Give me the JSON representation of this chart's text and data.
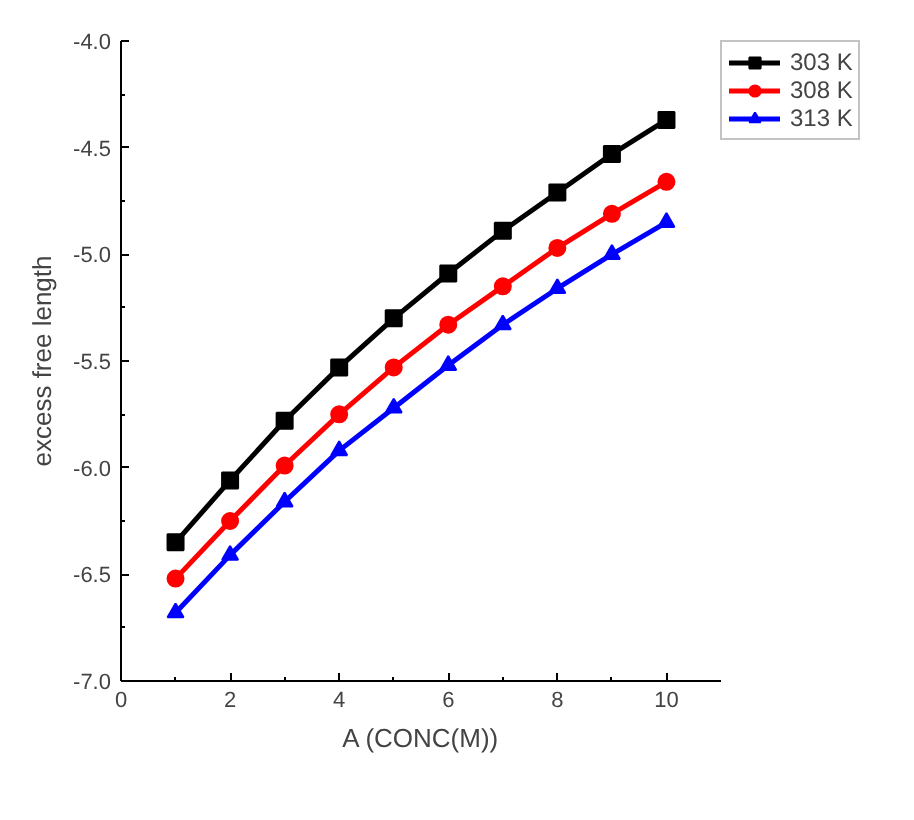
{
  "chart_data": {
    "type": "line",
    "xlabel": "A (CONC(M))",
    "ylabel": "excess free length",
    "x": [
      1,
      2,
      3,
      4,
      5,
      6,
      7,
      8,
      9,
      10
    ],
    "series": [
      {
        "name": "303 K",
        "color": "#000000",
        "marker": "square",
        "values": [
          -6.35,
          -6.06,
          -5.78,
          -5.53,
          -5.3,
          -5.09,
          -4.89,
          -4.71,
          -4.53,
          -4.37
        ]
      },
      {
        "name": "308 K",
        "color": "#ff0000",
        "marker": "circle",
        "values": [
          -6.52,
          -6.25,
          -5.99,
          -5.75,
          -5.53,
          -5.33,
          -5.15,
          -4.97,
          -4.81,
          -4.66
        ]
      },
      {
        "name": "313 K",
        "color": "#0000ff",
        "marker": "triangle",
        "values": [
          -6.68,
          -6.41,
          -6.16,
          -5.92,
          -5.72,
          -5.52,
          -5.33,
          -5.16,
          -5.0,
          -4.85
        ]
      }
    ],
    "xlim": [
      0,
      11
    ],
    "xticks": [
      0,
      2,
      4,
      6,
      8,
      10
    ],
    "ylim": [
      -7.0,
      -4.0
    ],
    "yticks": [
      {
        "value": -7.0,
        "label": "-7.0"
      },
      {
        "value": -6.5,
        "label": "-6.5"
      },
      {
        "value": -6.0,
        "label": "-6.0"
      },
      {
        "value": -5.5,
        "label": "-5.5"
      },
      {
        "value": -5.0,
        "label": "-5.0"
      },
      {
        "value": -4.5,
        "label": "-4.5"
      },
      {
        "value": -4.0,
        "label": "-4.0"
      }
    ],
    "grid": false,
    "legend": "top right",
    "line_style": "solid"
  }
}
